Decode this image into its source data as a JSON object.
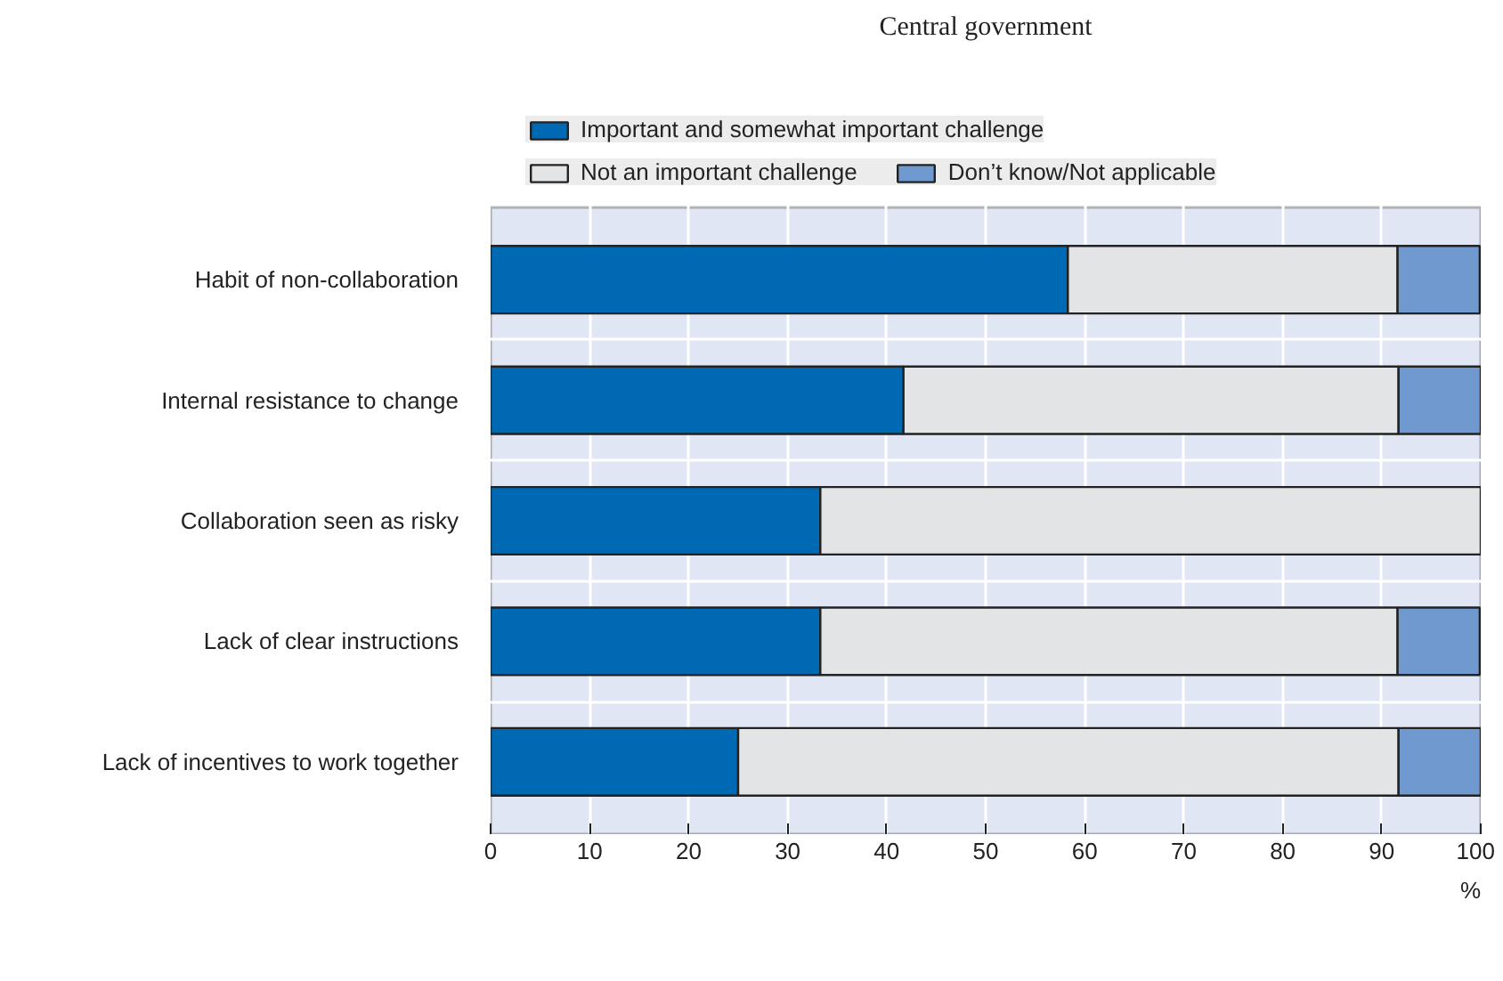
{
  "chart_data": {
    "type": "bar",
    "orientation": "horizontal",
    "stacked": true,
    "title": "Central government",
    "xlabel": "%",
    "categories": [
      "Habit of non-collaboration",
      "Internal resistance to change",
      "Collaboration seen as risky",
      "Lack of clear instructions",
      "Lack of incentives to work together"
    ],
    "series": [
      {
        "name": "Important and somewhat important challenge",
        "color": "#0069b4",
        "values": [
          58.3,
          41.7,
          33.3,
          33.3,
          25
        ]
      },
      {
        "name": "Not an important challenge",
        "color": "#e3e4e6",
        "values": [
          33.3,
          50,
          66.7,
          58.3,
          66.7
        ]
      },
      {
        "name": "Don’t know/Not applicable",
        "color": "#7099d0",
        "values": [
          8.3,
          8.3,
          0,
          8.3,
          8.3
        ]
      }
    ],
    "xlim": [
      0,
      100
    ],
    "xticks": [
      0,
      10,
      20,
      30,
      40,
      50,
      60,
      70,
      80,
      90,
      100
    ],
    "grid": true,
    "legend": "top"
  }
}
